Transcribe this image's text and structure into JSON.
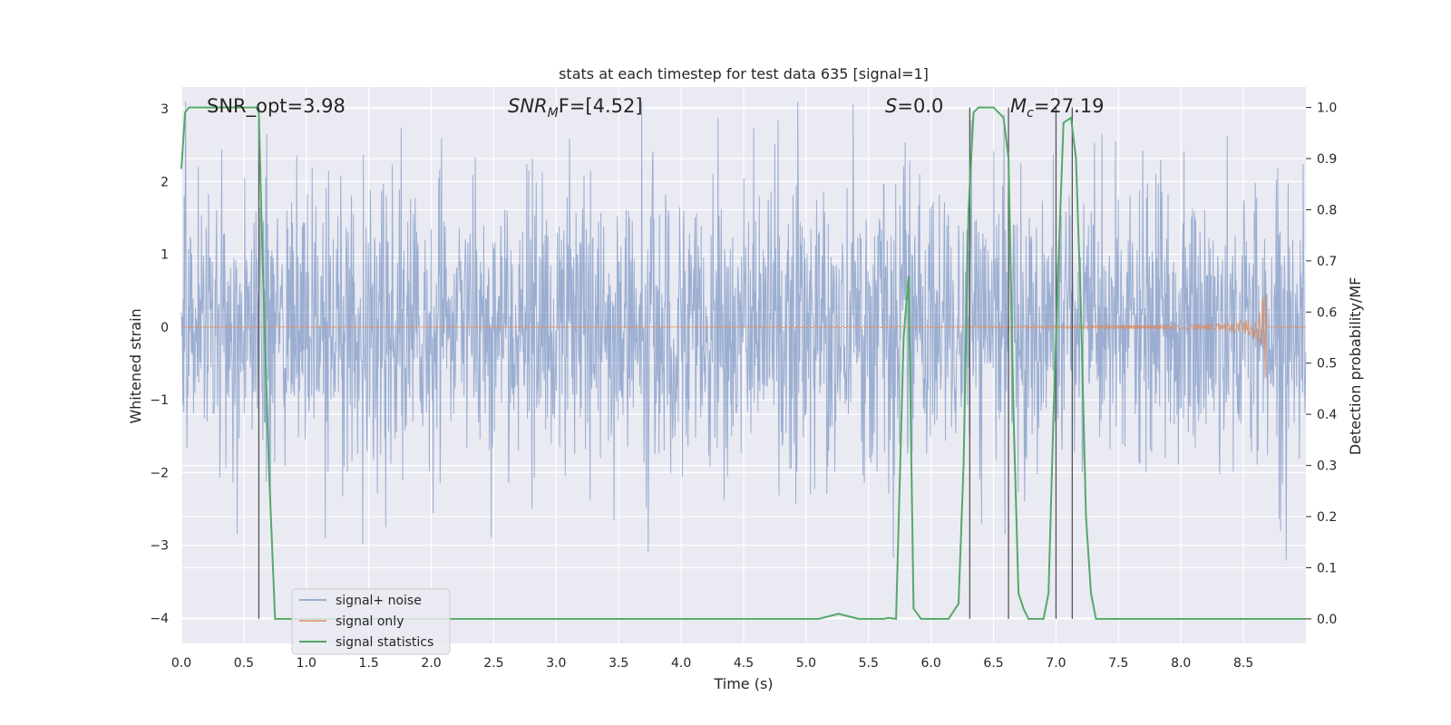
{
  "chart_data": {
    "type": "line",
    "title": "stats at each timestep for test data 635 [signal=1]",
    "xlabel": "Time (s)",
    "ylabel_left": "Whitened strain",
    "ylabel_right": "Detection probability/MF",
    "xlim": [
      0.0,
      9.0
    ],
    "ylim_left": [
      -4.35,
      3.3
    ],
    "ylim_right": [
      -0.048,
      1.04
    ],
    "x_ticks": [
      "0.0",
      "0.5",
      "1.0",
      "1.5",
      "2.0",
      "2.5",
      "3.0",
      "3.5",
      "4.0",
      "4.5",
      "5.0",
      "5.5",
      "6.0",
      "6.5",
      "7.0",
      "7.5",
      "8.0",
      "8.5"
    ],
    "y_ticks_left": [
      "3",
      "2",
      "1",
      "0",
      "−1",
      "−2",
      "−3",
      "−4"
    ],
    "y_ticks_right": [
      "1.0",
      "0.9",
      "0.8",
      "0.7",
      "0.6",
      "0.5",
      "0.4",
      "0.3",
      "0.2",
      "0.1",
      "0.0"
    ],
    "grid": true,
    "legend_position": "lower-left",
    "annotations": {
      "snr_opt": "SNR_opt=3.98",
      "snr_mf_main": "SNR",
      "snr_mf_sub": "M",
      "snr_mf_rest": "F=[4.52]",
      "s_main": "S",
      "s_rest": "=0.0",
      "mc_main": "M",
      "mc_sub": "c",
      "mc_rest": "=27.19"
    },
    "series": [
      {
        "name": "signal+ noise",
        "color": "#4c72b0",
        "description_values": {
          "std": 0.95,
          "x_range": [
            0.0,
            9.0
          ]
        }
      },
      {
        "name": "signal only",
        "color": "#dd8452",
        "chirp": {
          "start": 4.8,
          "peak_time": 8.68,
          "peak_amplitude": 0.75
        }
      },
      {
        "name": "signal statistics",
        "color": "#55a868",
        "x": [
          0.0,
          0.03,
          0.06,
          0.1,
          0.2,
          0.3,
          0.4,
          0.5,
          0.55,
          0.6,
          0.62,
          0.65,
          0.7,
          0.75,
          0.8,
          1.0,
          2.0,
          3.0,
          4.0,
          5.0,
          5.1,
          5.18,
          5.26,
          5.34,
          5.42,
          5.5,
          5.58,
          5.62,
          5.66,
          5.72,
          5.78,
          5.82,
          5.86,
          5.92,
          5.98,
          6.06,
          6.14,
          6.22,
          6.26,
          6.3,
          6.34,
          6.38,
          6.42,
          6.5,
          6.58,
          6.62,
          6.66,
          6.7,
          6.74,
          6.78,
          6.82,
          6.86,
          6.9,
          6.94,
          6.98,
          7.02,
          7.06,
          7.12,
          7.16,
          7.2,
          7.24,
          7.28,
          7.32,
          7.36,
          7.5,
          8.0,
          8.5,
          9.0
        ],
        "y": [
          0.88,
          0.99,
          1.0,
          1.0,
          1.0,
          1.0,
          1.0,
          1.0,
          1.0,
          1.0,
          0.99,
          0.7,
          0.3,
          0.0,
          0.0,
          0.0,
          0.0,
          0.0,
          0.0,
          0.0,
          0.0,
          0.005,
          0.01,
          0.005,
          0.0,
          0.0,
          0.0,
          0.0,
          0.002,
          0.0,
          0.55,
          0.67,
          0.02,
          0.0,
          0.0,
          0.0,
          0.0,
          0.03,
          0.3,
          0.8,
          0.99,
          1.0,
          1.0,
          1.0,
          0.98,
          0.9,
          0.4,
          0.05,
          0.02,
          0.0,
          0.0,
          0.0,
          0.0,
          0.05,
          0.4,
          0.7,
          0.97,
          0.98,
          0.9,
          0.6,
          0.2,
          0.05,
          0.0,
          0.0,
          0.0,
          0.0,
          0.0,
          0.0
        ]
      }
    ],
    "vertical_lines_x": [
      0.62,
      6.31,
      6.62,
      7.0,
      7.13
    ]
  }
}
